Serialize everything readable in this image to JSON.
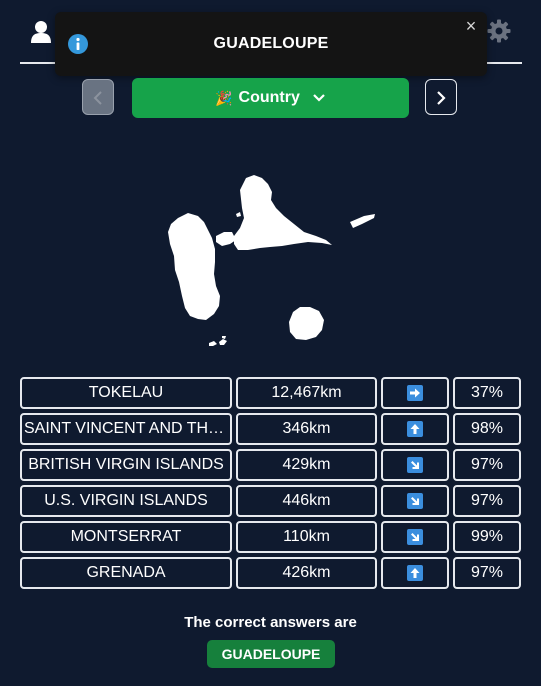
{
  "toast": {
    "message": "GUADELOUPE",
    "close_label": "×"
  },
  "mode_button": {
    "icon": "🎉",
    "label": "Country"
  },
  "guesses": [
    {
      "name": "TOKELAU",
      "distance": "12,467km",
      "direction": "right",
      "proximity": "37%"
    },
    {
      "name": "SAINT VINCENT AND THE GRENADINES",
      "distance": "346km",
      "direction": "up",
      "proximity": "98%"
    },
    {
      "name": "BRITISH VIRGIN ISLANDS",
      "distance": "429km",
      "direction": "down-right",
      "proximity": "97%"
    },
    {
      "name": "U.S. VIRGIN ISLANDS",
      "distance": "446km",
      "direction": "down-right",
      "proximity": "97%"
    },
    {
      "name": "MONTSERRAT",
      "distance": "110km",
      "direction": "down-right",
      "proximity": "99%"
    },
    {
      "name": "GRENADA",
      "distance": "426km",
      "direction": "up",
      "proximity": "97%"
    }
  ],
  "answer": {
    "label": "The correct answers are",
    "value": "GUADELOUPE"
  },
  "colors": {
    "background": "#0f1a2f",
    "accent_green": "#16a34a",
    "arrow_blue": "#3b8ede"
  }
}
